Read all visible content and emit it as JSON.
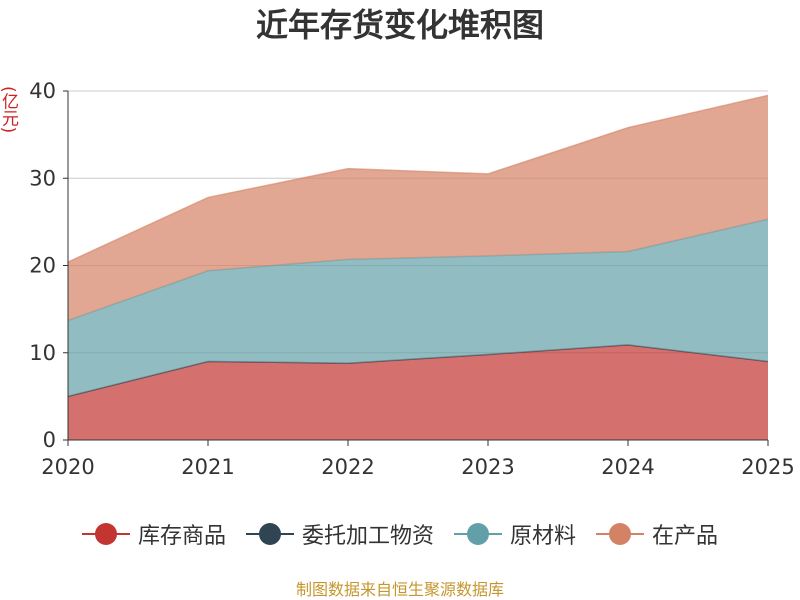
{
  "chart_data": {
    "type": "area",
    "stacked": true,
    "title": "近年存货变化堆积图",
    "unit": "(亿元)",
    "x": [
      "2020",
      "2021",
      "2022",
      "2023",
      "2024",
      "2025"
    ],
    "ylim": [
      0,
      40
    ],
    "yticks": [
      0,
      10,
      20,
      30,
      40
    ],
    "grid": true,
    "legend_position": "bottom",
    "series": [
      {
        "name": "库存商品",
        "color": "#c23531",
        "values": [
          5.0,
          9.0,
          8.8,
          9.8,
          10.9,
          9.0
        ]
      },
      {
        "name": "委托加工物资",
        "color": "#2f4554",
        "values": [
          0.0,
          0.0,
          0.0,
          0.0,
          0.0,
          0.0
        ]
      },
      {
        "name": "原材料",
        "color": "#61a0a8",
        "values": [
          8.7,
          10.4,
          11.9,
          11.3,
          10.7,
          16.3
        ]
      },
      {
        "name": "在产品",
        "color": "#d48265",
        "values": [
          6.7,
          8.4,
          10.4,
          9.4,
          14.2,
          14.2
        ]
      }
    ]
  },
  "source": "制图数据来自恒生聚源数据库"
}
